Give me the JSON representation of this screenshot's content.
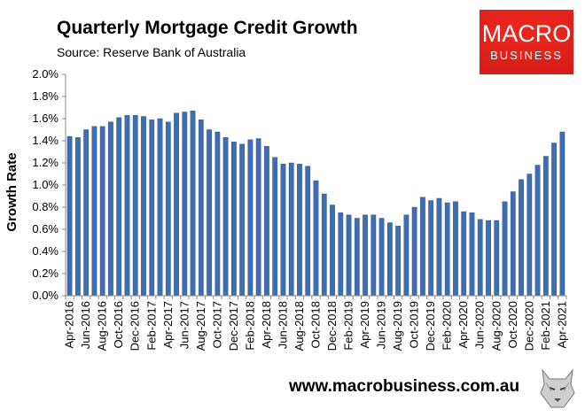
{
  "header": {
    "title": "Quarterly Mortgage Credit Growth",
    "source": "Source: Reserve Bank of Australia"
  },
  "logo": {
    "line1": "MACRO",
    "line2": "BUSINESS"
  },
  "footer": {
    "url": "www.macrobusiness.com.au"
  },
  "colors": {
    "bar": "#3f6db1",
    "bar_edge": "#2a4f8a",
    "axis": "#888888"
  },
  "chart_data": {
    "type": "bar",
    "ylabel": "Growth Rate",
    "xlabel": "",
    "ylim": [
      0,
      0.02
    ],
    "yticks": [
      "0.0%",
      "0.2%",
      "0.4%",
      "0.6%",
      "0.8%",
      "1.0%",
      "1.2%",
      "1.4%",
      "1.6%",
      "1.8%",
      "2.0%"
    ],
    "grid": false,
    "tick_labels": [
      "Apr-2016",
      "Jun-2016",
      "Aug-2016",
      "Oct-2016",
      "Dec-2016",
      "Feb-2017",
      "Apr-2017",
      "Jun-2017",
      "Aug-2017",
      "Oct-2017",
      "Dec-2017",
      "Feb-2018",
      "Apr-2018",
      "Jun-2018",
      "Aug-2018",
      "Oct-2018",
      "Dec-2018",
      "Feb-2019",
      "Apr-2019",
      "Jun-2019",
      "Aug-2019",
      "Oct-2019",
      "Dec-2019",
      "Feb-2020",
      "Apr-2020",
      "Jun-2020",
      "Aug-2020",
      "Oct-2020",
      "Dec-2020",
      "Feb-2021",
      "Apr-2021"
    ],
    "categories": [
      "Apr-2016",
      "May-2016",
      "Jun-2016",
      "Jul-2016",
      "Aug-2016",
      "Sep-2016",
      "Oct-2016",
      "Nov-2016",
      "Dec-2016",
      "Jan-2017",
      "Feb-2017",
      "Mar-2017",
      "Apr-2017",
      "May-2017",
      "Jun-2017",
      "Jul-2017",
      "Aug-2017",
      "Sep-2017",
      "Oct-2017",
      "Nov-2017",
      "Dec-2017",
      "Jan-2018",
      "Feb-2018",
      "Mar-2018",
      "Apr-2018",
      "May-2018",
      "Jun-2018",
      "Jul-2018",
      "Aug-2018",
      "Sep-2018",
      "Oct-2018",
      "Nov-2018",
      "Dec-2018",
      "Jan-2019",
      "Feb-2019",
      "Mar-2019",
      "Apr-2019",
      "May-2019",
      "Jun-2019",
      "Jul-2019",
      "Aug-2019",
      "Sep-2019",
      "Oct-2019",
      "Nov-2019",
      "Dec-2019",
      "Jan-2020",
      "Feb-2020",
      "Mar-2020",
      "Apr-2020",
      "May-2020",
      "Jun-2020",
      "Jul-2020",
      "Aug-2020",
      "Sep-2020",
      "Oct-2020",
      "Nov-2020",
      "Dec-2020",
      "Jan-2021",
      "Feb-2021",
      "Mar-2021",
      "Apr-2021"
    ],
    "values": [
      0.0144,
      0.0143,
      0.015,
      0.0153,
      0.0153,
      0.0157,
      0.0161,
      0.0163,
      0.0163,
      0.0162,
      0.0159,
      0.016,
      0.0157,
      0.0165,
      0.0166,
      0.0167,
      0.0159,
      0.015,
      0.0148,
      0.0143,
      0.0139,
      0.0137,
      0.0141,
      0.0142,
      0.0135,
      0.0125,
      0.0119,
      0.012,
      0.0119,
      0.0117,
      0.0104,
      0.0092,
      0.0082,
      0.0075,
      0.0073,
      0.007,
      0.0073,
      0.0073,
      0.007,
      0.0066,
      0.0063,
      0.0073,
      0.008,
      0.0089,
      0.0086,
      0.0088,
      0.0084,
      0.0085,
      0.0076,
      0.0075,
      0.0069,
      0.0068,
      0.0068,
      0.0085,
      0.0094,
      0.0105,
      0.011,
      0.0118,
      0.0126,
      0.0138,
      0.0148
    ]
  }
}
